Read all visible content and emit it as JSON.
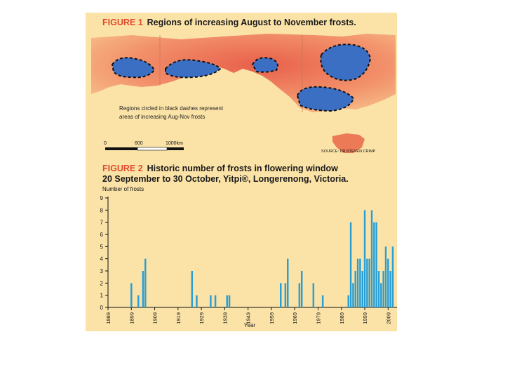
{
  "figure1": {
    "label": "FIGURE 1",
    "title": "Regions of increasing August to November frosts.",
    "note_line1": "Regions circled in black dashes represent",
    "note_line2": "areas of increasing Aug-Nov frosts",
    "scale_ticks": [
      "0",
      "600",
      "1000km"
    ],
    "source": "SOURCE: DR STEVEN CRIMP"
  },
  "figure2": {
    "label": "FIGURE 2",
    "title_line1": "Historic number of frosts in flowering window",
    "title_line2": "20 September to 30 October, Yitpi®, Longerenong, Victoria."
  },
  "colors": {
    "panel_bg": "#fbe3a8",
    "accent_label": "#e04a2c",
    "bar": "#2a9fd6",
    "map_warm": "#e8604a",
    "map_cool": "#3a6fc4"
  },
  "chart_data": {
    "type": "bar",
    "ylabel": "Number of frosts",
    "xlabel": "Year",
    "ylim": [
      0,
      9
    ],
    "xlim": [
      1889,
      2011
    ],
    "yticks": [
      0,
      1,
      2,
      3,
      4,
      5,
      6,
      7,
      8,
      9
    ],
    "xticks": [
      1889,
      1899,
      1909,
      1919,
      1929,
      1939,
      1949,
      1959,
      1969,
      1979,
      1989,
      1999,
      2009
    ],
    "x": [
      1899,
      1902,
      1904,
      1905,
      1925,
      1927,
      1933,
      1935,
      1940,
      1941,
      1963,
      1965,
      1966,
      1971,
      1972,
      1977,
      1981,
      1992,
      1993,
      1994,
      1995,
      1996,
      1997,
      1998,
      1999,
      2000,
      2001,
      2002,
      2003,
      2004,
      2005,
      2006,
      2007,
      2008,
      2009,
      2010,
      2011
    ],
    "values": [
      2,
      1,
      3,
      4,
      3,
      1,
      1,
      1,
      1,
      1,
      2,
      2,
      4,
      2,
      3,
      2,
      1,
      1,
      7,
      2,
      3,
      4,
      4,
      3,
      8,
      4,
      4,
      8,
      7,
      7,
      3,
      2,
      3,
      5,
      4,
      3,
      5
    ]
  }
}
